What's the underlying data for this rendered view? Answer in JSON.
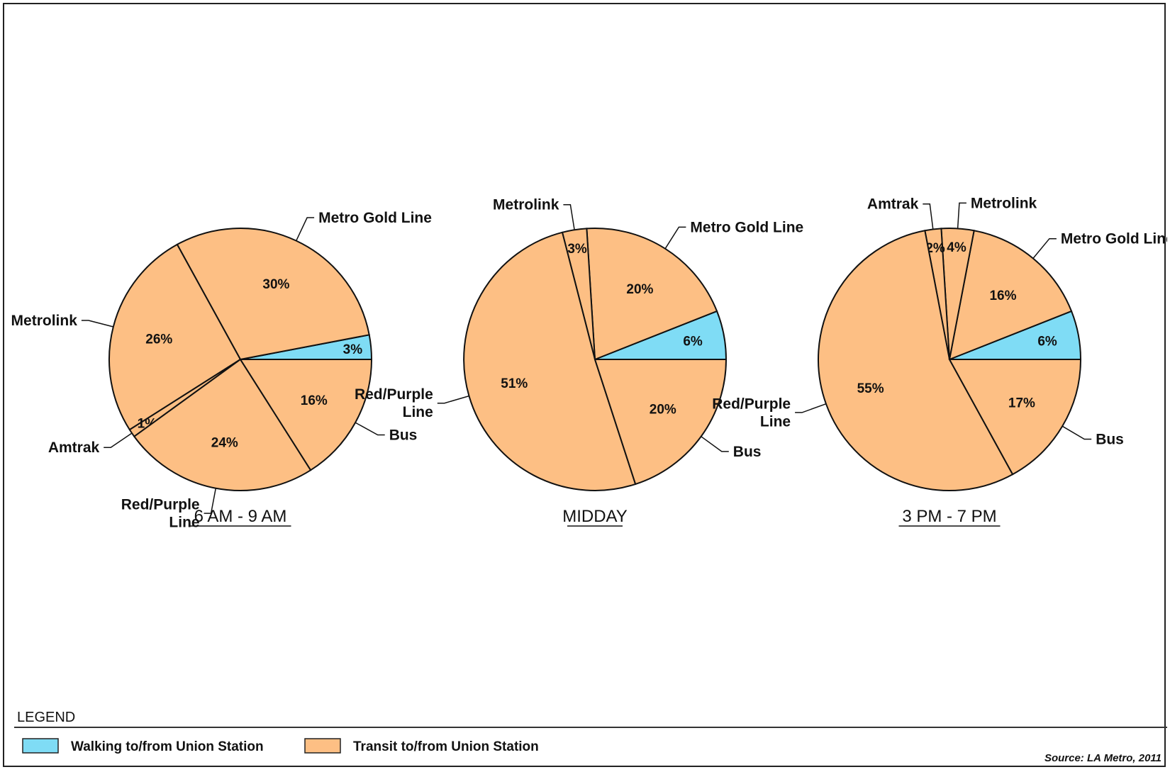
{
  "colors": {
    "walking": "#7fdcf5",
    "transit": "#fdbf84",
    "stroke": "#111111"
  },
  "chart_data": [
    {
      "type": "pie",
      "title": "6 AM - 9 AM",
      "slices": [
        {
          "label": "Walking",
          "value": 3,
          "pct_label": "3%",
          "callout": "",
          "category": "walking"
        },
        {
          "label": "Metro Gold Line",
          "value": 30,
          "pct_label": "30%",
          "callout": "Metro Gold Line",
          "category": "transit"
        },
        {
          "label": "Metrolink",
          "value": 26,
          "pct_label": "26%",
          "callout": "Metrolink",
          "category": "transit"
        },
        {
          "label": "Amtrak",
          "value": 1,
          "pct_label": "1%",
          "callout": "Amtrak",
          "category": "transit"
        },
        {
          "label": "Red/Purple Line",
          "value": 24,
          "pct_label": "24%",
          "callout": "Red/Purple\nLine",
          "category": "transit"
        },
        {
          "label": "Bus",
          "value": 16,
          "pct_label": "16%",
          "callout": "Bus",
          "category": "transit"
        }
      ]
    },
    {
      "type": "pie",
      "title": "MIDDAY",
      "slices": [
        {
          "label": "Walking",
          "value": 6,
          "pct_label": "6%",
          "callout": "",
          "category": "walking"
        },
        {
          "label": "Metro Gold Line",
          "value": 20,
          "pct_label": "20%",
          "callout": "Metro Gold Line",
          "category": "transit"
        },
        {
          "label": "Metrolink",
          "value": 3,
          "pct_label": "3%",
          "callout": "Metrolink",
          "category": "transit"
        },
        {
          "label": "Red/Purple Line",
          "value": 51,
          "pct_label": "51%",
          "callout": "Red/Purple\nLine",
          "category": "transit"
        },
        {
          "label": "Bus",
          "value": 20,
          "pct_label": "20%",
          "callout": "Bus",
          "category": "transit"
        }
      ]
    },
    {
      "type": "pie",
      "title": "3 PM - 7 PM",
      "slices": [
        {
          "label": "Walking",
          "value": 6,
          "pct_label": "6%",
          "callout": "",
          "category": "walking"
        },
        {
          "label": "Metro Gold Line",
          "value": 16,
          "pct_label": "16%",
          "callout": "Metro Gold Line",
          "category": "transit"
        },
        {
          "label": "Metrolink",
          "value": 4,
          "pct_label": "4%",
          "callout": "Metrolink",
          "category": "transit"
        },
        {
          "label": "Amtrak",
          "value": 2,
          "pct_label": "2%",
          "callout": "Amtrak",
          "category": "transit"
        },
        {
          "label": "Red/Purple Line",
          "value": 55,
          "pct_label": "55%",
          "callout": "Red/Purple\nLine",
          "category": "transit"
        },
        {
          "label": "Bus",
          "value": 17,
          "pct_label": "17%",
          "callout": "Bus",
          "category": "transit"
        }
      ]
    }
  ],
  "legend": {
    "title": "LEGEND",
    "items": [
      {
        "label": "Walking to/from Union Station",
        "category": "walking"
      },
      {
        "label": "Transit to/from Union Station",
        "category": "transit"
      }
    ]
  },
  "source": "Source: LA Metro, 2011"
}
